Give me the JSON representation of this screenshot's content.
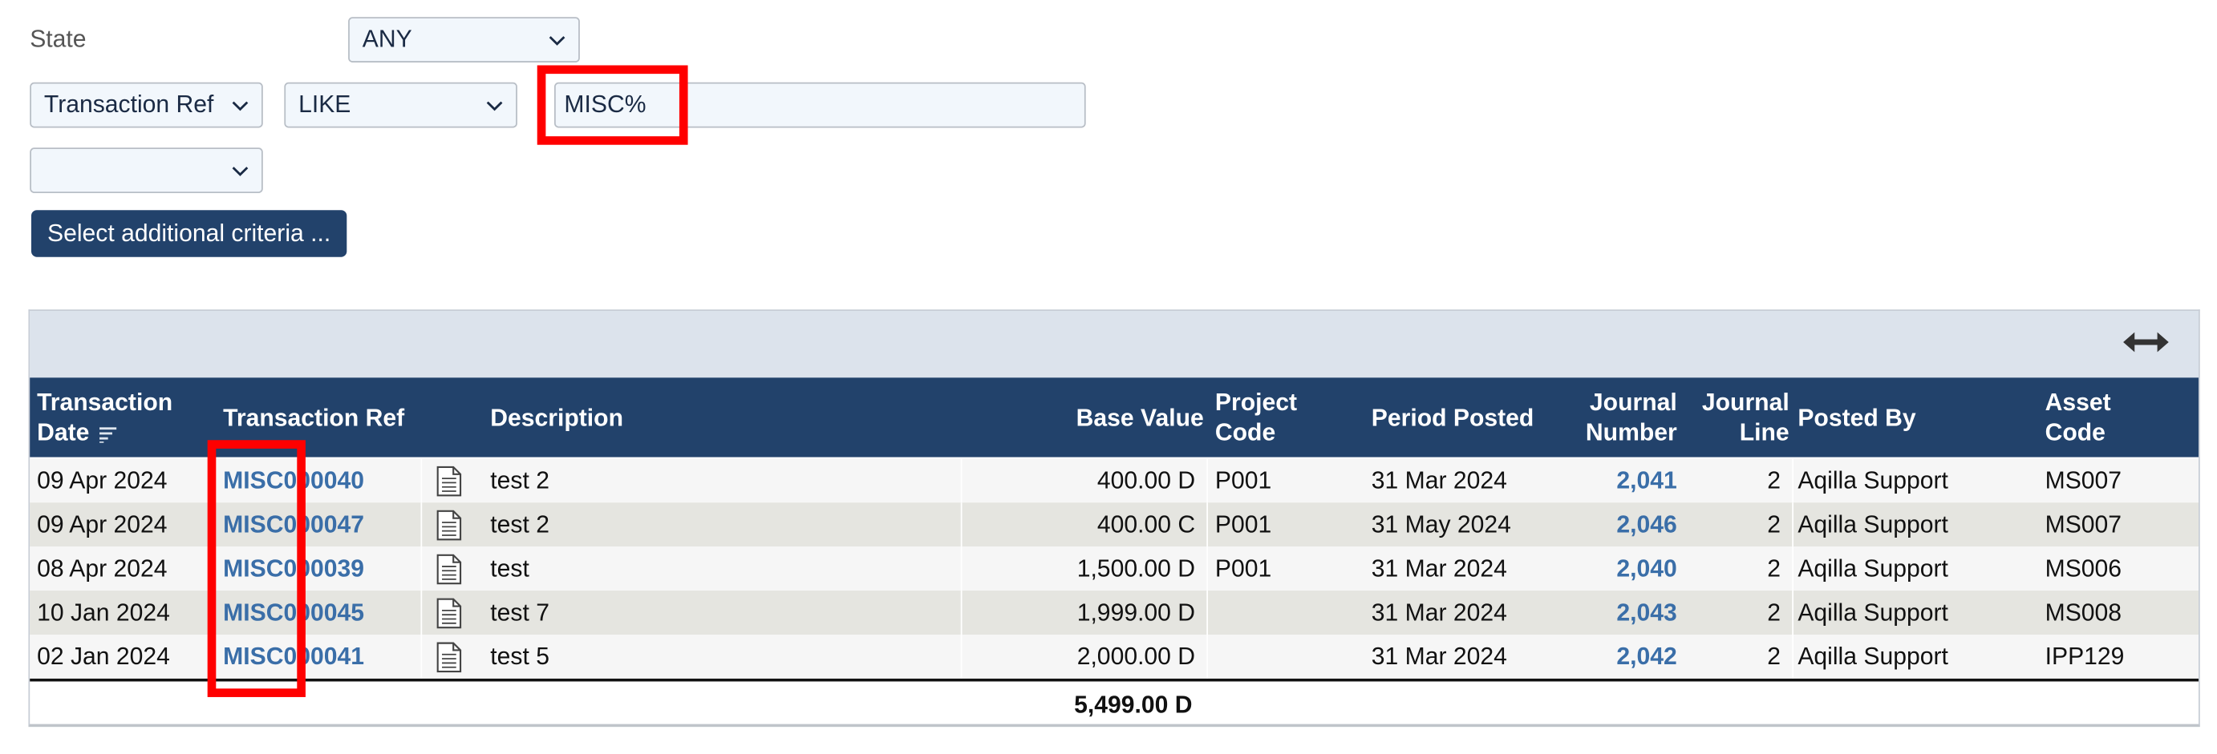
{
  "filters": {
    "state_label": "State",
    "state_value": "ANY",
    "field_value": "Transaction Ref",
    "operator_value": "LIKE",
    "criteria_value": "MISC%",
    "extra_select_value": "",
    "additional_button": "Select additional criteria ..."
  },
  "table": {
    "columns": {
      "date_line1": "Transaction",
      "date_line2": "Date",
      "ref": "Transaction Ref",
      "description": "Description",
      "base_value": "Base Value",
      "project_line1": "Project",
      "project_line2": "Code",
      "period": "Period Posted",
      "journal_number_line1": "Journal",
      "journal_number_line2": "Number",
      "journal_line_line1": "Journal",
      "journal_line_line2": "Line",
      "posted_by": "Posted By",
      "asset_line1": "Asset",
      "asset_line2": "Code"
    },
    "rows": [
      {
        "date": "09 Apr 2024",
        "ref": "MISC000040",
        "description": "test 2",
        "base_value": "400.00 D",
        "project": "P001",
        "period": "31 Mar 2024",
        "journal_number": "2,041",
        "journal_line": "2",
        "posted_by": "Aqilla Support",
        "asset": "MS007"
      },
      {
        "date": "09 Apr 2024",
        "ref": "MISC000047",
        "description": "test 2",
        "base_value": "400.00 C",
        "project": "P001",
        "period": "31 May 2024",
        "journal_number": "2,046",
        "journal_line": "2",
        "posted_by": "Aqilla Support",
        "asset": "MS007"
      },
      {
        "date": "08 Apr 2024",
        "ref": "MISC000039",
        "description": "test",
        "base_value": "1,500.00 D",
        "project": "P001",
        "period": "31 Mar 2024",
        "journal_number": "2,040",
        "journal_line": "2",
        "posted_by": "Aqilla Support",
        "asset": "MS006"
      },
      {
        "date": "10 Jan 2024",
        "ref": "MISC000045",
        "description": "test 7",
        "base_value": "1,999.00 D",
        "project": "",
        "period": "31 Mar 2024",
        "journal_number": "2,043",
        "journal_line": "2",
        "posted_by": "Aqilla Support",
        "asset": "MS008"
      },
      {
        "date": "02 Jan 2024",
        "ref": "MISC000041",
        "description": "test 5",
        "base_value": "2,000.00 D",
        "project": "",
        "period": "31 Mar 2024",
        "journal_number": "2,042",
        "journal_line": "2",
        "posted_by": "Aqilla Support",
        "asset": "IPP129"
      }
    ],
    "total": "5,499.00 D"
  },
  "icons": {
    "dropdown": "chevron-down-icon",
    "sort": "sort-descending-icon",
    "document": "document-icon",
    "expand": "expand-horizontal-icon"
  },
  "colors": {
    "header_bg": "#22426b",
    "toolbar_bg": "#dce3ec",
    "link": "#3a6ea8",
    "highlight": "#ff0000",
    "row_odd": "#f6f6f6",
    "row_even": "#e5e5e0"
  }
}
